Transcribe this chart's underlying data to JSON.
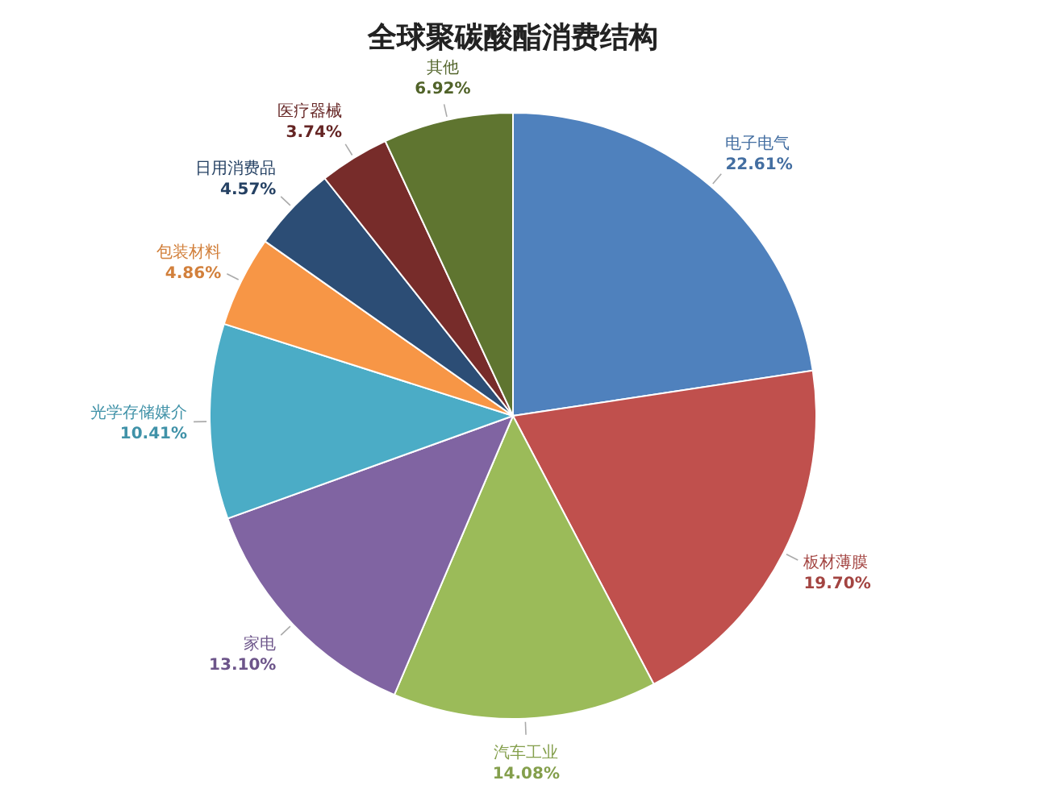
{
  "chart_data": {
    "type": "pie",
    "title": "全球聚碳酸酯消费结构",
    "categories": [
      "电子电气",
      "板材薄膜",
      "汽车工业",
      "家电",
      "光学存储媒介",
      "包装材料",
      "日用消费品",
      "医疗器械",
      "其他"
    ],
    "values": [
      22.61,
      19.7,
      14.08,
      13.1,
      10.41,
      4.86,
      4.57,
      3.74,
      6.92
    ],
    "colors": [
      "#4f81bd",
      "#c0504d",
      "#9bbb59",
      "#8064a2",
      "#4bacc6",
      "#f79646",
      "#2c4d75",
      "#772c2a",
      "#5f7530"
    ],
    "value_labels": [
      "22.61%",
      "19.70%",
      "14.08%",
      "13.10%",
      "10.41%",
      "4.86%",
      "4.57%",
      "3.74%",
      "6.92%"
    ]
  }
}
